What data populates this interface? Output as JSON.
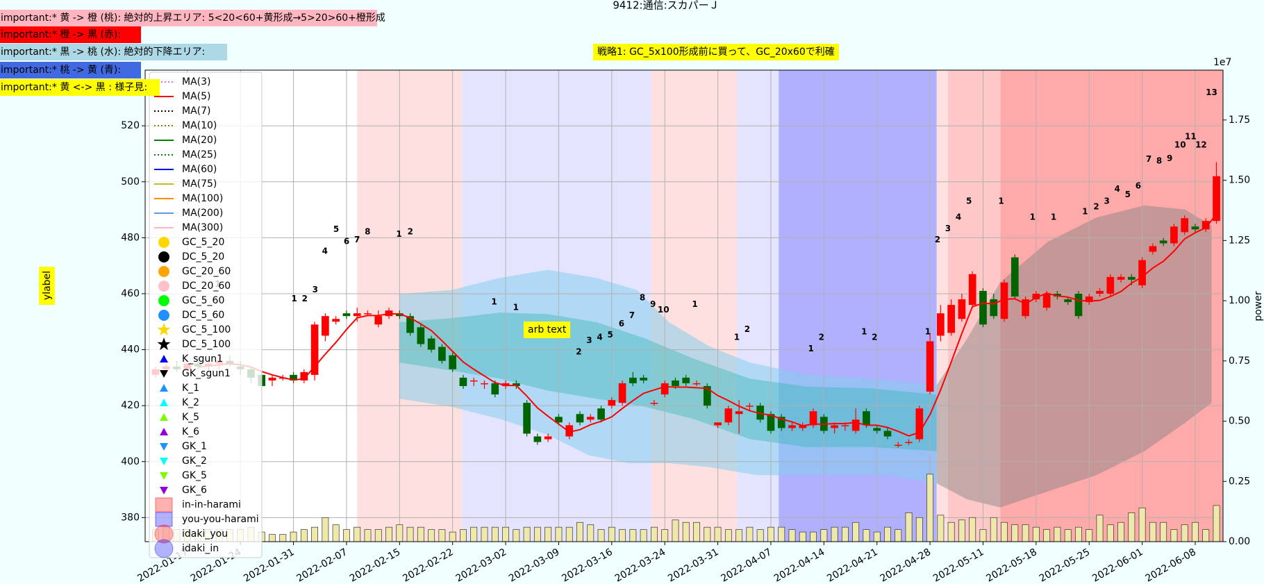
{
  "title": "9412:通信:スカパーＪ",
  "notes": [
    {
      "text": "important:* 黄 -> 橙 (桃): 絶対的上昇エリア: 5<20<60+黄形成→5>20>60+橙形成",
      "color": "#ffb6c1"
    },
    {
      "text": "important:* 橙 -> 黒 (赤):",
      "color": "#ff0000"
    },
    {
      "text": "important:* 黒 -> 桃 (水): 絶対的下降エリア:",
      "color": "#add8e6"
    },
    {
      "text": "important:* 桃 -> 黄 (青):",
      "color": "#4169e1"
    },
    {
      "text": "important:* 黄 <-> 黒 : 様子見:",
      "color": "#ffff00"
    }
  ],
  "strategy": "戦略1: GC_5x100形成前に買って、GC_20x60で利確",
  "chart_data": {
    "type": "candlestick",
    "ylabel": "ylabel",
    "y2label": "power",
    "y2_offset_label": "1e7",
    "arb_text": "arb text",
    "categories": [
      null,
      null,
      null,
      "2022-01-17",
      null,
      null,
      null,
      null,
      "2022-01-24",
      null,
      null,
      null,
      null,
      "2022-01-31",
      null,
      null,
      null,
      null,
      "2022-02-07",
      null,
      null,
      null,
      null,
      "2022-02-15",
      null,
      null,
      null,
      null,
      "2022-02-22",
      null,
      null,
      null,
      null,
      "2022-03-02",
      null,
      null,
      null,
      null,
      "2022-03-09",
      null,
      null,
      null,
      null,
      "2022-03-16",
      null,
      null,
      null,
      null,
      "2022-03-24",
      null,
      null,
      null,
      null,
      "2022-03-31",
      null,
      null,
      null,
      null,
      "2022-04-07",
      null,
      null,
      null,
      null,
      "2022-04-14",
      null,
      null,
      null,
      null,
      "2022-04-21",
      null,
      null,
      null,
      null,
      "2022-04-28",
      null,
      null,
      null,
      null,
      "2022-05-11",
      null,
      null,
      null,
      null,
      "2022-05-18",
      null,
      null,
      null,
      null,
      "2022-05-25",
      null,
      null,
      null,
      null,
      "2022-06-01",
      null,
      null,
      null,
      null,
      "2022-06-08",
      null,
      null
    ],
    "ylim": [
      371.4,
      539.9
    ],
    "yticks": [
      380,
      400,
      420,
      440,
      460,
      480,
      500,
      520
    ],
    "y2lim": [
      0,
      1.957
    ],
    "y2ticks": [
      {
        "value": 0,
        "label": "0.00"
      },
      {
        "value": 0.25,
        "label": "0.25"
      },
      {
        "value": 0.5,
        "label": "0.50"
      },
      {
        "value": 0.75,
        "label": "0.75"
      },
      {
        "value": 1,
        "label": "1.00"
      },
      {
        "value": 1.25,
        "label": "1.25"
      },
      {
        "value": 1.5,
        "label": "1.50"
      },
      {
        "value": 1.75,
        "label": "1.75"
      }
    ],
    "grid": true,
    "ohlc": {
      "up_color": "#ff0000",
      "down_color": "#006400",
      "open": [
        431,
        433,
        434,
        433,
        435,
        434,
        435,
        436,
        434,
        433,
        431,
        429,
        430,
        431,
        429,
        431,
        445,
        450,
        453,
        452,
        453,
        449,
        452,
        453,
        452,
        448,
        444,
        441,
        438,
        430,
        429,
        428,
        428,
        427,
        428,
        421,
        409,
        408,
        416,
        409,
        417,
        415,
        419,
        420,
        421,
        430,
        430,
        421,
        424,
        429,
        430,
        428,
        427,
        413,
        414,
        417,
        420,
        420,
        417,
        416,
        412,
        412,
        413,
        416,
        412,
        413,
        411,
        418,
        412,
        411,
        406,
        407,
        408,
        425,
        445,
        446,
        451,
        456,
        461,
        458,
        451,
        473,
        452,
        458,
        455,
        460,
        458,
        460,
        457,
        460,
        460,
        465,
        466,
        463,
        475,
        479,
        478,
        482,
        484,
        483,
        486
      ],
      "high": [
        434,
        435,
        436,
        435,
        437,
        436,
        437,
        438,
        436,
        434,
        432,
        431,
        431,
        432,
        433,
        450,
        453,
        452,
        454,
        455,
        454,
        454,
        455,
        454,
        453,
        449,
        445,
        442,
        439,
        431,
        430,
        429,
        429,
        429,
        429,
        422,
        410,
        410,
        417,
        414,
        418,
        417,
        420,
        423,
        429,
        432,
        431,
        422,
        429,
        430,
        431,
        429,
        428,
        414,
        420,
        422,
        421,
        421,
        418,
        417,
        414,
        414,
        419,
        417,
        414,
        414,
        419,
        419,
        413,
        412,
        407,
        408,
        420,
        446,
        456,
        458,
        460,
        468,
        462,
        460,
        465,
        474,
        459,
        461,
        461,
        461,
        459,
        461,
        460,
        462,
        467,
        467,
        467,
        473,
        478,
        480,
        485,
        488,
        485,
        487,
        507
      ],
      "low": [
        430,
        431,
        432,
        431,
        433,
        432,
        433,
        434,
        431,
        428,
        425,
        427,
        429,
        428,
        428,
        429,
        443,
        449,
        451,
        450,
        452,
        448,
        451,
        451,
        445,
        441,
        439,
        435,
        432,
        426,
        427,
        426,
        423,
        426,
        426,
        409,
        406,
        407,
        413,
        408,
        413,
        414,
        414,
        419,
        420,
        427,
        428,
        420,
        423,
        426,
        427,
        427,
        419,
        412,
        413,
        410,
        418,
        414,
        410,
        411,
        411,
        411,
        412,
        410,
        410,
        411,
        410,
        412,
        410,
        408,
        405,
        406,
        407,
        424,
        443,
        445,
        450,
        455,
        448,
        451,
        450,
        458,
        451,
        457,
        454,
        458,
        456,
        451,
        456,
        459,
        459,
        464,
        463,
        462,
        474,
        477,
        477,
        481,
        482,
        482,
        485
      ],
      "close": [
        433,
        434,
        433,
        435,
        434,
        435,
        436,
        435,
        433,
        430,
        427,
        430,
        430,
        429,
        432,
        449,
        452,
        451,
        452,
        453,
        453,
        452,
        454,
        452,
        446,
        442,
        440,
        436,
        433,
        427,
        429,
        428,
        424,
        428,
        427,
        410,
        407,
        409,
        414,
        413,
        414,
        416,
        415,
        422,
        428,
        428,
        429,
        421,
        428,
        427,
        428,
        428,
        420,
        414,
        419,
        418,
        420,
        415,
        411,
        412,
        413,
        413,
        418,
        411,
        413,
        413,
        415,
        413,
        411,
        409,
        406,
        407,
        419,
        443,
        453,
        456,
        458,
        467,
        449,
        452,
        464,
        459,
        458,
        460,
        460,
        459,
        457,
        452,
        459,
        461,
        466,
        466,
        465,
        472,
        477,
        478,
        484,
        487,
        483,
        486,
        502
      ]
    },
    "volume": {
      "color": "#eee8aa",
      "axis": "y2",
      "values": [
        0.05,
        0.06,
        0.05,
        0.05,
        0.04,
        0.05,
        0.05,
        0.05,
        0.05,
        0.06,
        0.04,
        0.03,
        0.03,
        0.04,
        0.05,
        0.06,
        0.1,
        0.07,
        0.05,
        0.06,
        0.05,
        0.05,
        0.06,
        0.07,
        0.06,
        0.06,
        0.05,
        0.05,
        0.04,
        0.05,
        0.06,
        0.06,
        0.06,
        0.06,
        0.05,
        0.06,
        0.06,
        0.06,
        0.06,
        0.06,
        0.08,
        0.07,
        0.05,
        0.06,
        0.05,
        0.05,
        0.05,
        0.06,
        0.05,
        0.09,
        0.08,
        0.08,
        0.06,
        0.06,
        0.05,
        0.05,
        0.06,
        0.05,
        0.06,
        0.06,
        0.05,
        0.04,
        0.04,
        0.05,
        0.06,
        0.06,
        0.08,
        0.05,
        0.04,
        0.06,
        0.05,
        0.12,
        0.1,
        0.28,
        0.11,
        0.08,
        0.09,
        0.1,
        0.05,
        0.1,
        0.08,
        0.07,
        0.07,
        0.06,
        0.05,
        0.06,
        0.05,
        0.06,
        0.05,
        0.11,
        0.07,
        0.08,
        0.12,
        0.14,
        0.08,
        0.08,
        0.05,
        0.07,
        0.08,
        0.05,
        0.15
      ]
    },
    "series": [
      {
        "name": "MA(3)",
        "color": "#da70d6",
        "marker": "dotted"
      },
      {
        "name": "MA(5)",
        "color": "#ff0000",
        "marker": "line",
        "values": [
          null,
          null,
          null,
          null,
          433.8,
          434.2,
          434.6,
          435.0,
          434.6,
          433.8,
          432.2,
          431.0,
          430.0,
          429.2,
          429.6,
          434.0,
          438.4,
          442.6,
          447.2,
          451.4,
          452.2,
          452.2,
          452.8,
          452.8,
          451.4,
          449.2,
          446.8,
          443.2,
          439.4,
          435.6,
          433.0,
          430.6,
          428.2,
          427.2,
          427.2,
          423.4,
          419.2,
          416.2,
          413.4,
          410.6,
          411.4,
          413.2,
          414.4,
          416.0,
          419.0,
          421.8,
          424.4,
          425.6,
          426.8,
          426.6,
          426.6,
          426.4,
          426.2,
          423.6,
          421.8,
          419.8,
          418.2,
          417.2,
          416.6,
          415.2,
          414.2,
          412.8,
          413.4,
          413.4,
          413.6,
          413.6,
          414.0,
          413.0,
          413.0,
          412.2,
          410.8,
          409.2,
          410.4,
          416.8,
          425.6,
          435.6,
          445.8,
          455.4,
          456.6,
          456.4,
          458.0,
          458.2,
          456.4,
          458.6,
          460.2,
          459.2,
          458.8,
          457.6,
          457.4,
          457.6,
          459.0,
          460.8,
          463.8,
          466.0,
          469.2,
          471.6,
          475.2,
          479.6,
          481.8,
          483.6,
          488.4
        ]
      },
      {
        "name": "MA(7)",
        "color": "#000000",
        "marker": "dotted"
      },
      {
        "name": "MA(10)",
        "color": "#808000",
        "marker": "dotted"
      },
      {
        "name": "MA(20)",
        "color": "#008000",
        "marker": "line"
      },
      {
        "name": "MA(25)",
        "color": "#008000",
        "marker": "dotted"
      },
      {
        "name": "MA(60)",
        "color": "#0000ff",
        "marker": "line"
      },
      {
        "name": "MA(75)",
        "color": "#bcbd22",
        "marker": "line"
      },
      {
        "name": "MA(100)",
        "color": "#ff8c00",
        "marker": "line"
      },
      {
        "name": "MA(200)",
        "color": "#6495ed",
        "marker": "line"
      },
      {
        "name": "MA(300)",
        "color": "#ffb6c1",
        "marker": "line"
      },
      {
        "name": "GC_5_20",
        "color": "#ffd700",
        "marker": "o"
      },
      {
        "name": "DC_5_20",
        "color": "#000000",
        "marker": "o"
      },
      {
        "name": "GC_20_60",
        "color": "#ffa500",
        "marker": "o"
      },
      {
        "name": "DC_20_60",
        "color": "#ffc0cb",
        "marker": "o"
      },
      {
        "name": "GC_5_60",
        "color": "#00ff00",
        "marker": "o"
      },
      {
        "name": "DC_5_60",
        "color": "#1e90ff",
        "marker": "o"
      },
      {
        "name": "GC_5_100",
        "color": "#ffd700",
        "marker": "*"
      },
      {
        "name": "DC_5_100",
        "color": "#000000",
        "marker": "*"
      },
      {
        "name": "K_sgun1",
        "color": "#0000ff",
        "marker": "^"
      },
      {
        "name": "GK_sgun1",
        "color": "#000000",
        "marker": "v"
      },
      {
        "name": "K_1",
        "color": "#1e90ff",
        "marker": "^"
      },
      {
        "name": "K_2",
        "color": "#00ffff",
        "marker": "^"
      },
      {
        "name": "K_5",
        "color": "#7cfc00",
        "marker": "^"
      },
      {
        "name": "K_6",
        "color": "#9400d3",
        "marker": "^"
      },
      {
        "name": "GK_1",
        "color": "#1e90ff",
        "marker": "v"
      },
      {
        "name": "GK_2",
        "color": "#00ffff",
        "marker": "v"
      },
      {
        "name": "GK_5",
        "color": "#7cfc00",
        "marker": "v"
      },
      {
        "name": "GK_6",
        "color": "#9400d3",
        "marker": "v"
      },
      {
        "name": "in-in-harami",
        "color": "#ff0000",
        "marker": "s"
      },
      {
        "name": "you-you-harami",
        "color": "#0000ff",
        "marker": "s"
      },
      {
        "name": "idaki_you",
        "color": "#ff0000",
        "marker": "O"
      },
      {
        "name": "idaki_in",
        "color": "#0000ff",
        "marker": "O"
      }
    ],
    "annotations": [
      "5",
      "4",
      "6",
      "7",
      "8",
      "1",
      "2",
      "3",
      "1",
      "2",
      "1",
      "1",
      "2",
      "3",
      "4",
      "5",
      "6",
      "7",
      "8",
      "9",
      "10",
      "1",
      "1",
      "2",
      "1",
      "2",
      "1",
      "2",
      "1",
      "2",
      "3",
      "4",
      "5",
      "1",
      "1",
      "1",
      "1",
      "2",
      "3",
      "4",
      "5",
      "6",
      "7",
      "8",
      "9",
      "10",
      "11",
      "12",
      "13",
      "1"
    ]
  }
}
